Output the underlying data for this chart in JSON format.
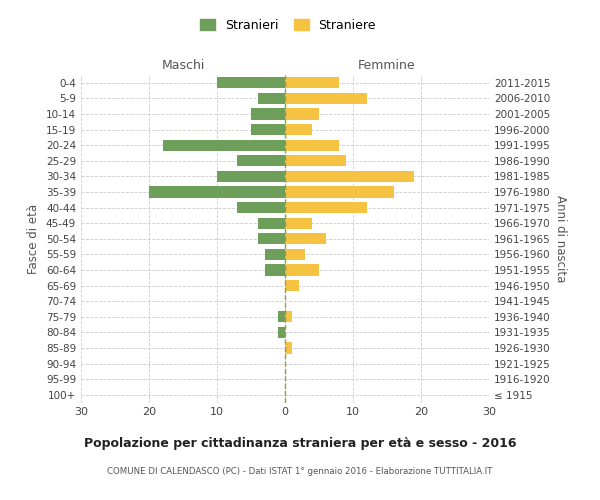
{
  "age_groups": [
    "100+",
    "95-99",
    "90-94",
    "85-89",
    "80-84",
    "75-79",
    "70-74",
    "65-69",
    "60-64",
    "55-59",
    "50-54",
    "45-49",
    "40-44",
    "35-39",
    "30-34",
    "25-29",
    "20-24",
    "15-19",
    "10-14",
    "5-9",
    "0-4"
  ],
  "birth_years": [
    "≤ 1915",
    "1916-1920",
    "1921-1925",
    "1926-1930",
    "1931-1935",
    "1936-1940",
    "1941-1945",
    "1946-1950",
    "1951-1955",
    "1956-1960",
    "1961-1965",
    "1966-1970",
    "1971-1975",
    "1976-1980",
    "1981-1985",
    "1986-1990",
    "1991-1995",
    "1996-2000",
    "2001-2005",
    "2006-2010",
    "2011-2015"
  ],
  "maschi": [
    0,
    0,
    0,
    0,
    1,
    1,
    0,
    0,
    3,
    3,
    4,
    4,
    7,
    20,
    10,
    7,
    18,
    5,
    5,
    4,
    10
  ],
  "femmine": [
    0,
    0,
    0,
    1,
    0,
    1,
    0,
    2,
    5,
    3,
    6,
    4,
    12,
    16,
    19,
    9,
    8,
    4,
    5,
    12,
    8
  ],
  "maschi_color": "#6d9e5a",
  "femmine_color": "#f5c242",
  "title": "Popolazione per cittadinanza straniera per età e sesso - 2016",
  "subtitle": "COMUNE DI CALENDASCO (PC) - Dati ISTAT 1° gennaio 2016 - Elaborazione TUTTITALIA.IT",
  "ylabel_left": "Fasce di età",
  "ylabel_right": "Anni di nascita",
  "label_maschi": "Maschi",
  "label_femmine": "Femmine",
  "legend_maschi": "Stranieri",
  "legend_femmine": "Straniere",
  "xlim": 30,
  "background_color": "#ffffff",
  "grid_color": "#cccccc"
}
